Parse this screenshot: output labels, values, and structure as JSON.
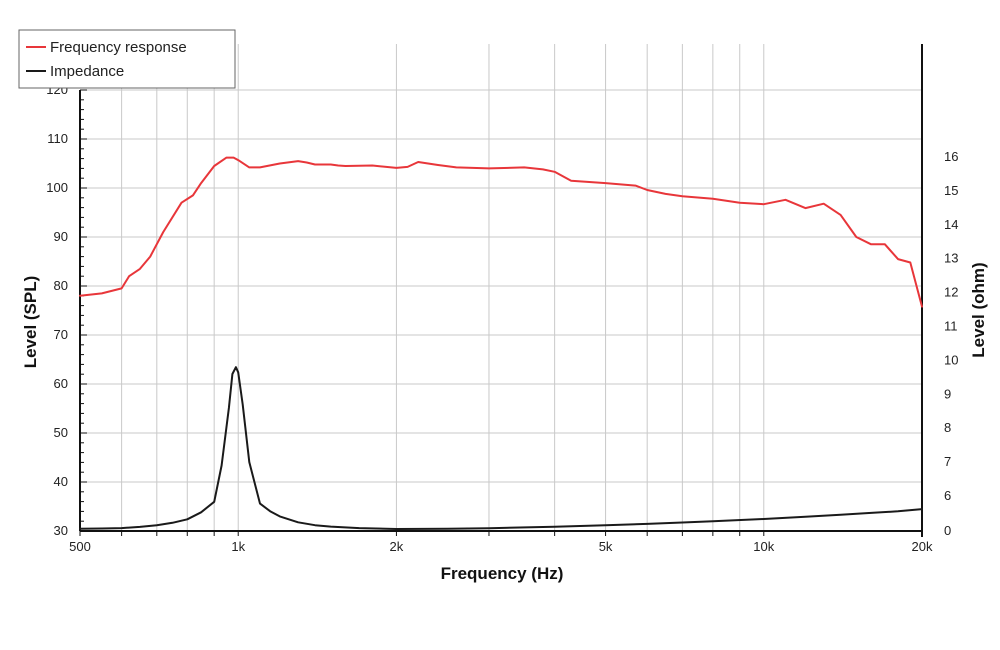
{
  "chart_data": {
    "type": "line",
    "xlabel": "Frequency (Hz)",
    "ylabel_left": "Level (SPL)",
    "ylabel_right": "Level (ohm)",
    "x_scale": "log",
    "xlim": [
      500,
      20000
    ],
    "x_ticks": [
      {
        "value": 500,
        "label": "500"
      },
      {
        "value": 1000,
        "label": "1k"
      },
      {
        "value": 2000,
        "label": "2k"
      },
      {
        "value": 5000,
        "label": "5k"
      },
      {
        "value": 10000,
        "label": "10k"
      },
      {
        "value": 20000,
        "label": "20k"
      }
    ],
    "x_minor_gridlines": [
      600,
      700,
      800,
      900,
      3000,
      4000,
      6000,
      7000,
      8000,
      9000
    ],
    "ylim_left": [
      30,
      120
    ],
    "y_ticks_left": [
      30,
      40,
      50,
      60,
      70,
      80,
      90,
      100,
      110,
      120
    ],
    "ylim_right": [
      0,
      16
    ],
    "y_ticks_right": [
      0,
      6,
      7,
      8,
      9,
      10,
      11,
      12,
      13,
      14,
      15,
      16
    ],
    "grid": true,
    "legend_position": "top-left",
    "series": [
      {
        "name": "Frequency response",
        "axis": "left",
        "color": "#e8363a",
        "x": [
          500,
          550,
          600,
          620,
          650,
          680,
          720,
          780,
          820,
          850,
          900,
          950,
          980,
          1000,
          1050,
          1100,
          1200,
          1300,
          1350,
          1400,
          1500,
          1550,
          1600,
          1800,
          2000,
          2100,
          2200,
          2400,
          2600,
          3000,
          3500,
          3800,
          4000,
          4300,
          5000,
          5700,
          6000,
          6500,
          7000,
          8000,
          9000,
          10000,
          11000,
          12000,
          13000,
          14000,
          15000,
          16000,
          17000,
          18000,
          19000,
          20000
        ],
        "values": [
          78,
          78.5,
          79.5,
          82,
          83.5,
          86,
          91,
          97,
          98.5,
          101,
          104.5,
          106.2,
          106.2,
          105.7,
          104.2,
          104.2,
          105,
          105.5,
          105.2,
          104.8,
          104.8,
          104.6,
          104.5,
          104.6,
          104.1,
          104.3,
          105.3,
          104.7,
          104.2,
          104,
          104.2,
          103.8,
          103.3,
          101.5,
          101,
          100.5,
          99.6,
          98.8,
          98.3,
          97.8,
          97,
          96.7,
          97.6,
          95.9,
          96.8,
          94.5,
          90,
          88.5,
          88.5,
          85.5,
          84.8,
          75.8
        ]
      },
      {
        "name": "Impedance",
        "axis": "right",
        "color": "#1a1a1a",
        "x": [
          500,
          550,
          600,
          650,
          700,
          750,
          800,
          850,
          900,
          930,
          960,
          975,
          990,
          1000,
          1020,
          1050,
          1100,
          1150,
          1200,
          1300,
          1400,
          1500,
          1700,
          2000,
          2500,
          3000,
          4000,
          5000,
          6000,
          7000,
          8000,
          10000,
          12000,
          14000,
          16000,
          18000,
          20000
        ],
        "values": [
          0.4,
          0.42,
          0.5,
          0.7,
          1.0,
          1.4,
          2.0,
          3.2,
          5.0,
          6.9,
          8.6,
          9.6,
          9.8,
          9.65,
          8.7,
          7.0,
          4.7,
          3.4,
          2.5,
          1.5,
          1.0,
          0.75,
          0.5,
          0.35,
          0.38,
          0.48,
          0.72,
          0.98,
          1.22,
          1.45,
          1.66,
          2.05,
          2.45,
          2.8,
          3.1,
          3.38,
          3.75
        ]
      }
    ]
  }
}
